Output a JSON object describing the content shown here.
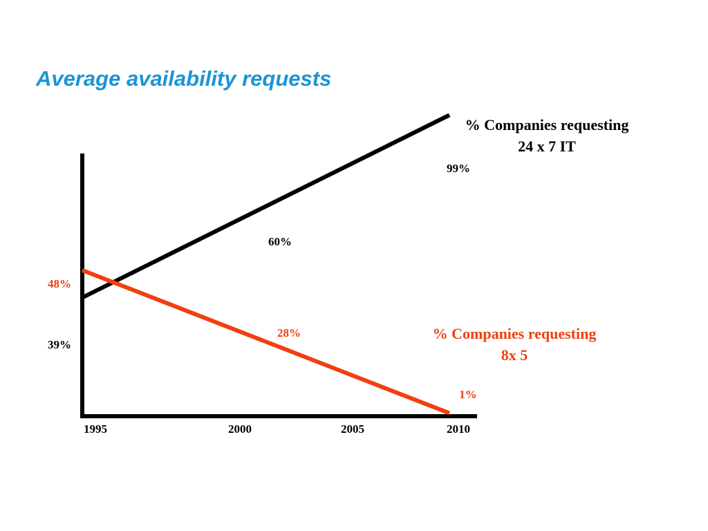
{
  "slide": {
    "title": "Average availability requests"
  },
  "colors": {
    "title": "#1a94d6",
    "series_24x7": "#000000",
    "series_8x5": "#f04010"
  },
  "chart_data": {
    "type": "line",
    "title": "",
    "xlabel": "",
    "ylabel": "",
    "x_ticks": [
      "1995",
      "2000",
      "2005",
      "2010"
    ],
    "xlim": [
      1995,
      2010
    ],
    "ylim": [
      0,
      100
    ],
    "grid": false,
    "series": [
      {
        "name": "% Companies requesting 24 x 7 IT",
        "name_lines": [
          "% Companies requesting",
          "24 x 7 IT"
        ],
        "color": "#000000",
        "points": [
          {
            "x": 1995,
            "y": 39,
            "label": "39%"
          },
          {
            "x": 2002.5,
            "y": 60,
            "label": "60%"
          },
          {
            "x": 2010,
            "y": 99,
            "label": "99%"
          }
        ]
      },
      {
        "name": "% Companies requesting 8x 5",
        "name_lines": [
          "% Companies requesting",
          "8x 5"
        ],
        "color": "#f04010",
        "points": [
          {
            "x": 1995,
            "y": 48,
            "label": "48%"
          },
          {
            "x": 2002.5,
            "y": 28,
            "label": "28%"
          },
          {
            "x": 2010,
            "y": 1,
            "label": "1%"
          }
        ]
      }
    ]
  }
}
